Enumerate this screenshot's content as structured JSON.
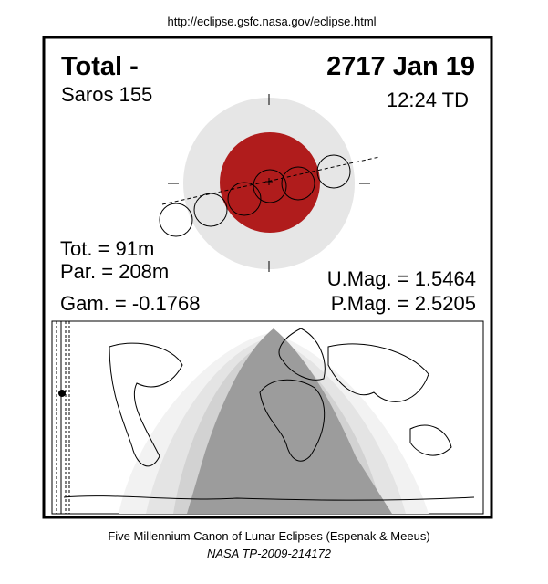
{
  "header": {
    "url": "http://eclipse.gsfc.nasa.gov/eclipse.html"
  },
  "panel": {
    "type": "Total  -",
    "date": "2717 Jan 19",
    "saros": "Saros 155",
    "time": "12:24 TD",
    "tot": "Tot. =  91m",
    "par": "Par. = 208m",
    "gam": "Gam. = -0.1768",
    "umag": "U.Mag. = 1.5464",
    "pmag": "P.Mag. = 2.5205"
  },
  "footer": {
    "line1": "Five Millennium Canon of Lunar Eclipses (Espenak & Meeus)",
    "line2": "NASA TP-2009-214172"
  }
}
